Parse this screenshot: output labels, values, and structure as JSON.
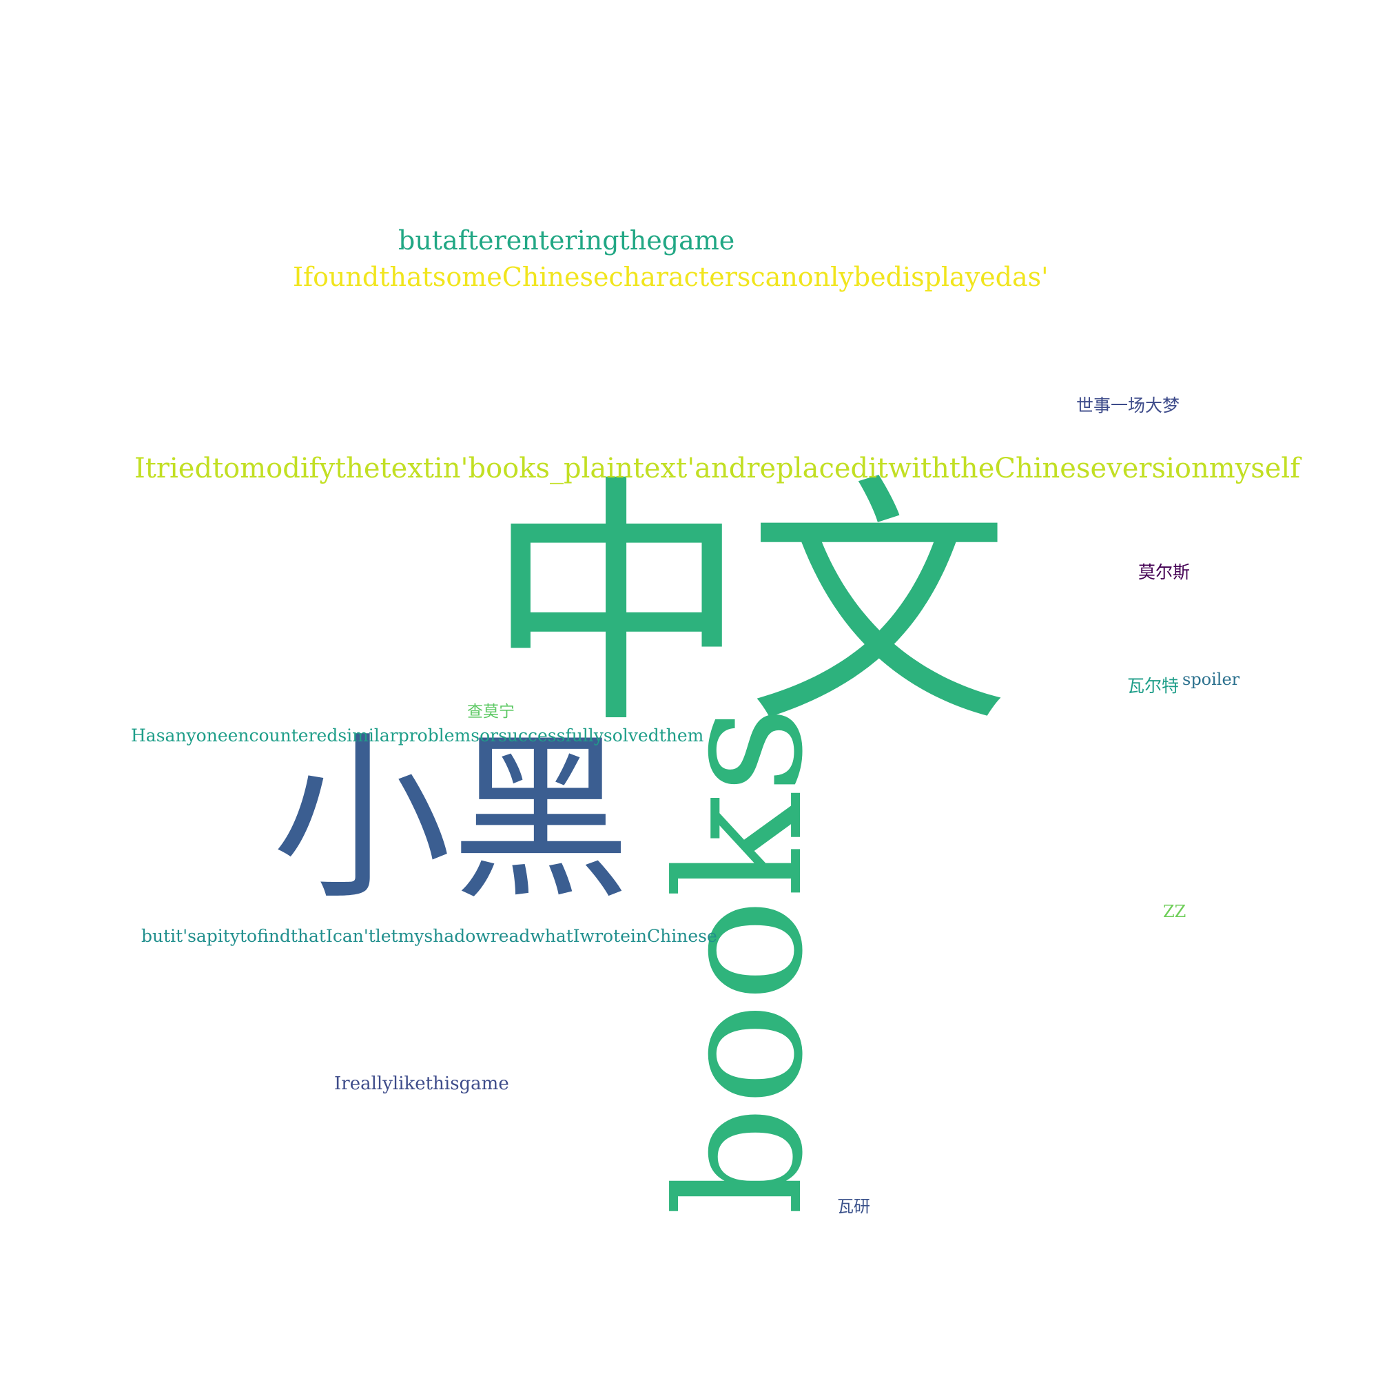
{
  "background_color": "#ffffff",
  "words": [
    {
      "id": "w1",
      "text": "中文",
      "color": "#2db27d",
      "rotated": false
    },
    {
      "id": "w2",
      "text": "books",
      "color": "#2fb47c",
      "rotated": true
    },
    {
      "id": "w3",
      "text": "小黑",
      "color": "#3b5e91",
      "rotated": false
    },
    {
      "id": "w4",
      "text": "Itriedtomodifythetextin'books_plaintext'andreplaceditwiththeChineseversionmyself",
      "color": "#c2df23",
      "rotated": false
    },
    {
      "id": "w5",
      "text": "IfoundthatsomeChinesecharacterscanonlybedisplayedas'",
      "color": "#f1e51d",
      "rotated": false
    },
    {
      "id": "w6",
      "text": "butafterenteringthegame",
      "color": "#21a784",
      "rotated": false
    },
    {
      "id": "w7",
      "text": "Hasanyoneencounteredsimilarproblemsorsuccessfullysolvedthem",
      "color": "#1f9e89",
      "rotated": false
    },
    {
      "id": "w8",
      "text": "butit'sapitytofindthatIcan'tletmyshadowreadwhatIwroteinChinese",
      "color": "#218f8d",
      "rotated": false
    },
    {
      "id": "w9",
      "text": "Ireallylikethisgame",
      "color": "#3e4c8a",
      "rotated": false
    },
    {
      "id": "w10",
      "text": "世事一场大梦",
      "color": "#3d4b8a",
      "rotated": false
    },
    {
      "id": "w11",
      "text": "莫尔斯",
      "color": "#440154",
      "rotated": false
    },
    {
      "id": "w12",
      "text": "瓦尔特",
      "color": "#1f9e89",
      "rotated": false
    },
    {
      "id": "w13",
      "text": "spoiler",
      "color": "#2c718e",
      "rotated": false
    },
    {
      "id": "w14",
      "text": "查莫宁",
      "color": "#5cc863",
      "rotated": false
    },
    {
      "id": "w15",
      "text": "ZZ",
      "color": "#6ece58",
      "rotated": false
    },
    {
      "id": "w16",
      "text": "瓦研",
      "color": "#3b528b",
      "rotated": false
    }
  ]
}
